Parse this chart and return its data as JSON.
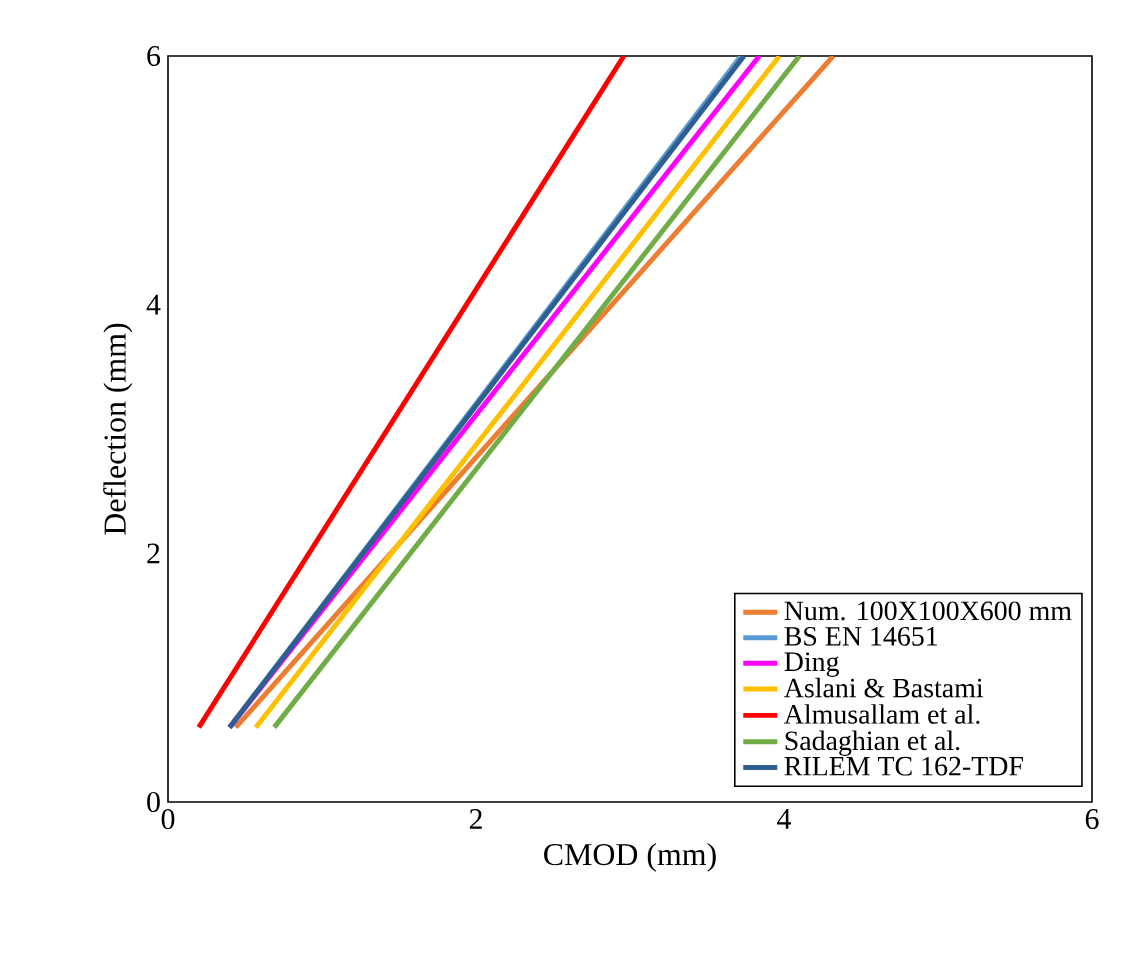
{
  "chart_data": {
    "type": "line",
    "xlabel": "CMOD (mm)",
    "ylabel": "Deflection (mm)",
    "xlim": [
      0,
      6
    ],
    "ylim": [
      0,
      6
    ],
    "xticks": [
      0,
      2,
      4,
      6
    ],
    "yticks": [
      0,
      2,
      4,
      6
    ],
    "grid": false,
    "legend": "bottom right",
    "series": [
      {
        "name": "Num. 100X100X600 mm",
        "color": "#ed7d31",
        "x": [
          0.44,
          4.32
        ],
        "values": [
          0.6,
          6
        ]
      },
      {
        "name": "BS EN 14651",
        "color": "#5b9bd5",
        "x": [
          0.4,
          3.72
        ],
        "values": [
          0.6,
          6
        ]
      },
      {
        "name": "Ding",
        "color": "#ff00ff",
        "x": [
          0.4,
          3.84
        ],
        "values": [
          0.6,
          6
        ]
      },
      {
        "name": "Aslani & Bastami",
        "color": "#ffc000",
        "x": [
          0.57,
          3.97
        ],
        "values": [
          0.6,
          6
        ]
      },
      {
        "name": "Almusallam et al.",
        "color": "#ff0000",
        "x": [
          0.2,
          2.96
        ],
        "values": [
          0.6,
          6
        ]
      },
      {
        "name": "Sadaghian et al.",
        "color": "#70ad47",
        "x": [
          0.69,
          4.1
        ],
        "values": [
          0.6,
          6
        ]
      },
      {
        "name": "RILEM TC 162-TDF",
        "color": "#2e5f8f",
        "x": [
          0.4,
          3.74
        ],
        "values": [
          0.6,
          6
        ]
      }
    ]
  }
}
